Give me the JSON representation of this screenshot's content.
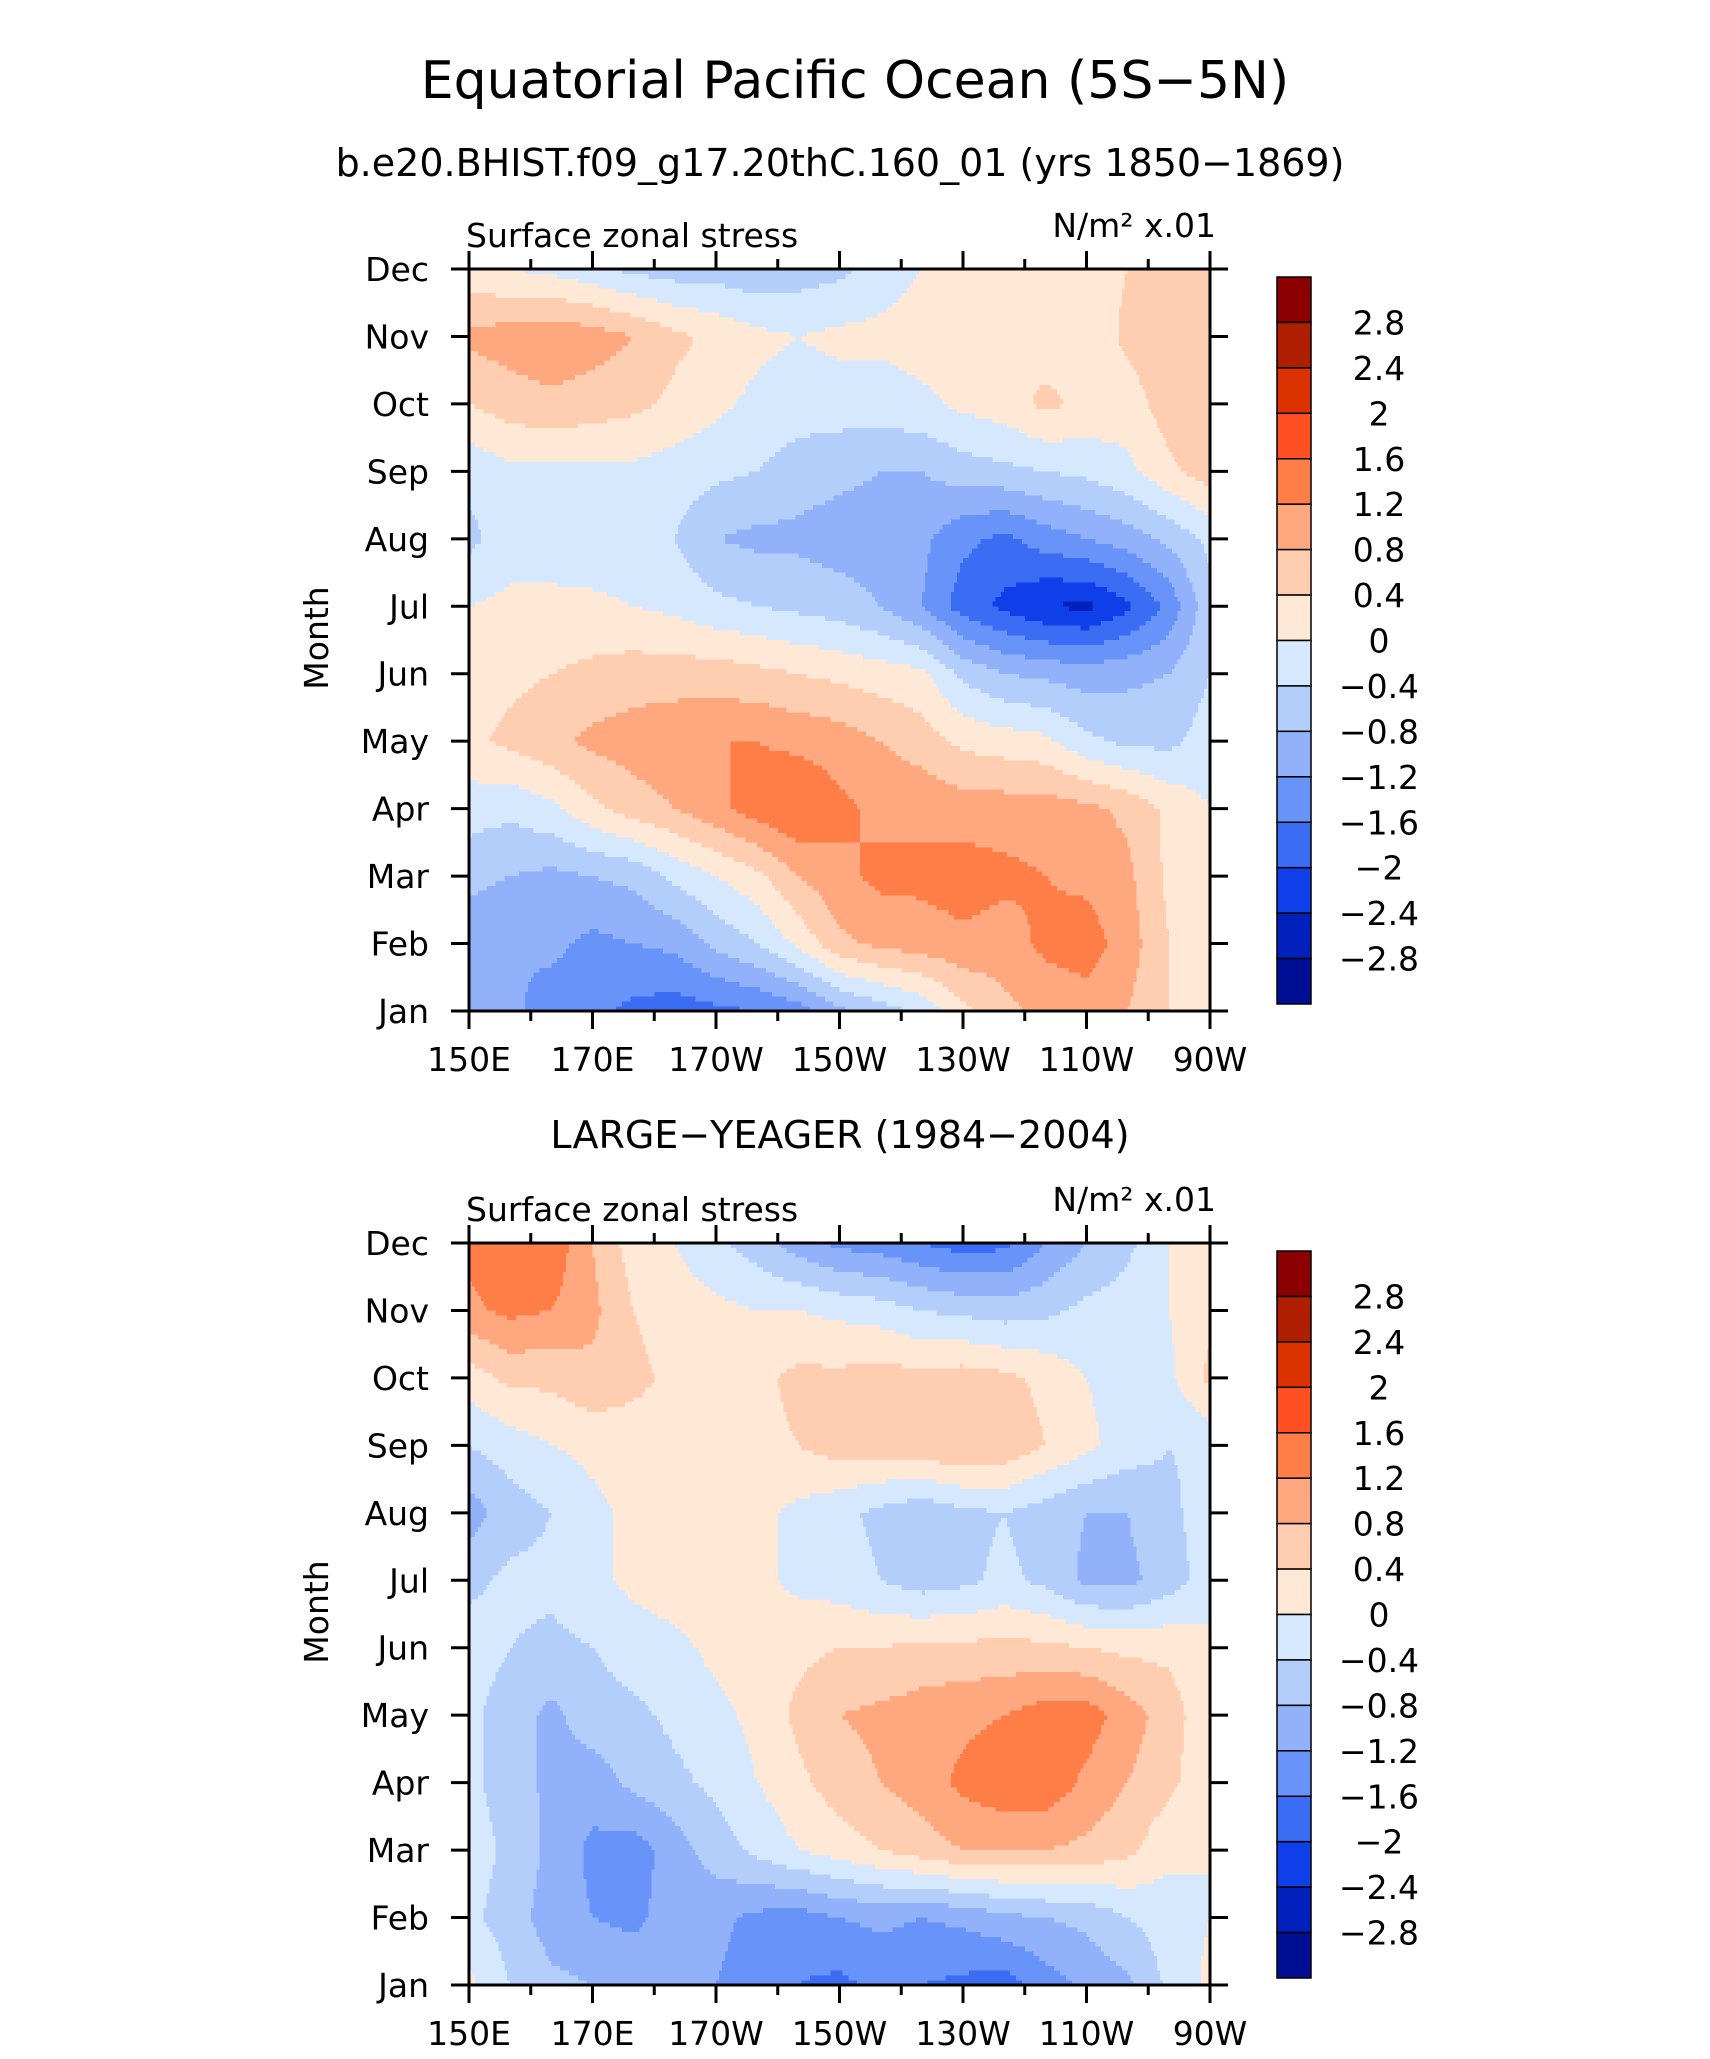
{
  "figure": {
    "title": "Equatorial Pacific Ocean (5S−5N)"
  },
  "colorbar": {
    "labels": [
      "2.8",
      "2.4",
      "2",
      "1.6",
      "1.2",
      "0.8",
      "0.4",
      "0",
      "−0.4",
      "−0.8",
      "−1.2",
      "−1.6",
      "−2",
      "−2.4",
      "−2.8"
    ],
    "colors": [
      "#8b0000",
      "#b01e00",
      "#dc3200",
      "#ff5024",
      "#ff7e48",
      "#ffa77f",
      "#ffcdb0",
      "#ffe8d6",
      "#d6e8fd",
      "#b4cefc",
      "#91b2fa",
      "#6893f8",
      "#3a6cf4",
      "#0f3fe8",
      "#0021bb",
      "#000e96"
    ]
  },
  "chart_data": [
    {
      "type": "heatmap",
      "subtitle": "b.e20.BHIST.f09_g17.20thC.160_01 (yrs 1850−1869)",
      "left_string": "Surface zonal stress",
      "right_string": "N/m² x.01",
      "xlabel": "",
      "ylabel": "Month",
      "x_ticks": [
        "150E",
        "170E",
        "170W",
        "150W",
        "130W",
        "110W",
        "90W"
      ],
      "y_ticks": [
        "Jan",
        "Feb",
        "Mar",
        "Apr",
        "May",
        "Jun",
        "Jul",
        "Aug",
        "Sep",
        "Oct",
        "Nov",
        "Dec"
      ],
      "x_range": [
        "150E",
        "90W"
      ],
      "levels": [
        -2.8,
        -2.4,
        -2,
        -1.6,
        -1.2,
        -0.8,
        -0.4,
        0,
        0.4,
        0.8,
        1.2,
        1.6,
        2,
        2.4,
        2.8
      ],
      "values": [
        [
          -1.0,
          -1.1,
          -1.4,
          -1.5,
          -1.7,
          -1.8,
          -1.7,
          -1.6,
          -1.4,
          -0.9,
          -0.6,
          -0.3,
          0.3,
          0.7,
          0.9,
          1.0,
          0.8,
          0.4,
          0.1
        ],
        [
          -1.0,
          -1.2,
          -1.1,
          -1.3,
          -1.2,
          -1.1,
          -0.7,
          -0.4,
          0.1,
          0.7,
          0.9,
          1.0,
          1.1,
          1.0,
          1.3,
          1.4,
          1.0,
          0.4,
          0.1
        ],
        [
          -0.7,
          -0.8,
          -0.9,
          -0.8,
          -0.7,
          -0.3,
          0.0,
          0.3,
          0.8,
          1.1,
          1.3,
          1.3,
          1.4,
          1.3,
          1.2,
          1.1,
          0.9,
          0.3,
          0.1
        ],
        [
          -0.2,
          -0.3,
          -0.1,
          0.3,
          0.6,
          0.8,
          1.1,
          1.4,
          1.6,
          1.3,
          1.1,
          1.1,
          1.0,
          1.0,
          1.0,
          0.9,
          0.7,
          0.3,
          0.0
        ],
        [
          0.3,
          0.5,
          0.7,
          0.9,
          1.0,
          1.1,
          1.2,
          1.2,
          1.1,
          1.0,
          0.8,
          0.6,
          0.3,
          0.2,
          0.1,
          -0.3,
          -0.5,
          -0.5,
          -0.2
        ],
        [
          0.2,
          0.3,
          0.4,
          0.5,
          0.6,
          0.6,
          0.6,
          0.5,
          0.4,
          0.3,
          0.2,
          0.1,
          -0.5,
          -0.8,
          -0.9,
          -1.0,
          -0.9,
          -0.8,
          -0.4
        ],
        [
          0.0,
          0.1,
          0.1,
          0.1,
          0.0,
          -0.1,
          -0.3,
          -0.4,
          -0.5,
          -0.6,
          -0.8,
          -1.2,
          -1.8,
          -2.1,
          -2.4,
          -2.5,
          -2.1,
          -1.5,
          -0.5
        ],
        [
          -0.5,
          -0.2,
          -0.2,
          -0.3,
          -0.3,
          -0.4,
          -0.8,
          -0.9,
          -0.9,
          -1.0,
          -1.0,
          -1.1,
          -1.5,
          -1.7,
          -1.4,
          -1.2,
          -1.0,
          -0.7,
          -0.3
        ],
        [
          -0.3,
          -0.1,
          -0.1,
          -0.1,
          -0.1,
          -0.2,
          -0.3,
          -0.4,
          -0.6,
          -0.7,
          -0.8,
          -0.8,
          -0.6,
          -0.5,
          -0.4,
          -0.3,
          -0.1,
          0.3,
          0.6
        ],
        [
          0.4,
          0.6,
          0.7,
          0.6,
          0.5,
          0.3,
          0.1,
          -0.1,
          -0.2,
          -0.2,
          -0.2,
          -0.1,
          0.1,
          0.2,
          0.5,
          0.3,
          0.2,
          0.6,
          0.7
        ],
        [
          0.9,
          1.0,
          1.1,
          1.0,
          0.8,
          0.5,
          0.3,
          0.1,
          0.0,
          0.1,
          0.1,
          0.2,
          0.1,
          0.2,
          0.2,
          0.1,
          0.5,
          0.7,
          0.8
        ],
        [
          0.1,
          0.0,
          -0.1,
          -0.3,
          -0.5,
          -0.6,
          -0.6,
          -0.7,
          -0.6,
          -0.5,
          -0.2,
          0.0,
          0.1,
          0.2,
          0.2,
          0.2,
          0.4,
          0.5,
          0.6
        ]
      ]
    },
    {
      "type": "heatmap",
      "subtitle": "LARGE−YEAGER (1984−2004)",
      "left_string": "Surface zonal stress",
      "right_string": "N/m² x.01",
      "xlabel": "",
      "ylabel": "Month",
      "x_ticks": [
        "150E",
        "170E",
        "170W",
        "150W",
        "130W",
        "110W",
        "90W"
      ],
      "y_ticks": [
        "Jan",
        "Feb",
        "Mar",
        "Apr",
        "May",
        "Jun",
        "Jul",
        "Aug",
        "Sep",
        "Oct",
        "Nov",
        "Dec"
      ],
      "x_range": [
        "150E",
        "90W"
      ],
      "levels": [
        -2.8,
        -2.4,
        -2,
        -1.6,
        -1.2,
        -0.8,
        -0.4,
        0,
        0.4,
        0.8,
        1.2,
        1.6,
        2,
        2.4,
        2.8
      ],
      "values": [
        [
          0.1,
          -0.4,
          -0.7,
          -0.8,
          -0.9,
          -1.0,
          -1.2,
          -1.4,
          -1.6,
          -1.7,
          -1.5,
          -1.6,
          -1.7,
          -1.8,
          -1.4,
          -1.1,
          -0.9,
          -0.3,
          0.1
        ],
        [
          -0.3,
          -0.6,
          -1.0,
          -1.2,
          -1.3,
          -1.0,
          -1.1,
          -1.3,
          -1.4,
          -1.2,
          -1.1,
          -1.2,
          -1.1,
          -0.9,
          -0.8,
          -0.7,
          -0.4,
          -0.2,
          0.0
        ],
        [
          -0.2,
          -0.5,
          -0.9,
          -1.3,
          -1.4,
          -1.0,
          -0.6,
          -0.3,
          0.0,
          0.2,
          0.4,
          0.6,
          0.8,
          0.8,
          0.8,
          0.7,
          0.5,
          0.1,
          0.0
        ],
        [
          -0.3,
          -0.6,
          -0.9,
          -1.0,
          -0.7,
          -0.5,
          -0.3,
          0.0,
          0.3,
          0.6,
          0.8,
          1.0,
          1.3,
          1.5,
          1.5,
          1.1,
          0.8,
          0.5,
          0.1
        ],
        [
          -0.3,
          -0.6,
          -0.9,
          -0.6,
          -0.5,
          -0.3,
          -0.1,
          0.1,
          0.5,
          0.8,
          0.9,
          1.0,
          1.1,
          1.2,
          1.4,
          1.4,
          1.0,
          0.6,
          0.1
        ],
        [
          -0.2,
          -0.4,
          -0.5,
          -0.4,
          -0.2,
          -0.1,
          0.1,
          0.2,
          0.3,
          0.4,
          0.4,
          0.5,
          0.5,
          0.5,
          0.5,
          0.4,
          0.3,
          0.3,
          0.1
        ],
        [
          -0.5,
          -0.3,
          -0.3,
          -0.1,
          0.1,
          0.2,
          0.2,
          0.1,
          -0.1,
          -0.2,
          -0.4,
          -0.6,
          -0.5,
          -0.3,
          -0.5,
          -0.9,
          -0.9,
          -0.6,
          -0.2
        ],
        [
          -1.0,
          -0.6,
          -0.4,
          -0.1,
          0.1,
          0.2,
          0.3,
          0.1,
          -0.1,
          -0.3,
          -0.5,
          -0.7,
          -0.5,
          -0.4,
          -0.6,
          -0.8,
          -0.8,
          -0.5,
          -0.2
        ],
        [
          -0.4,
          -0.2,
          0.0,
          0.1,
          0.2,
          0.3,
          0.3,
          0.3,
          0.4,
          0.6,
          0.6,
          0.7,
          0.8,
          0.7,
          0.4,
          0.1,
          -0.2,
          -0.4,
          -0.3
        ],
        [
          0.2,
          0.5,
          0.5,
          0.7,
          0.5,
          0.3,
          0.2,
          0.3,
          0.5,
          0.5,
          0.6,
          0.5,
          0.6,
          0.5,
          0.3,
          0.0,
          -0.2,
          -0.1,
          0.5
        ],
        [
          1.1,
          1.3,
          1.2,
          0.9,
          0.4,
          0.2,
          0.1,
          0.0,
          0.0,
          -0.1,
          -0.2,
          -0.4,
          -0.5,
          -0.6,
          -0.5,
          -0.3,
          -0.2,
          0.0,
          0.3
        ],
        [
          1.3,
          1.6,
          1.5,
          0.8,
          0.2,
          0.0,
          -0.3,
          -0.6,
          -1.0,
          -1.3,
          -1.4,
          -1.6,
          -1.8,
          -1.7,
          -1.2,
          -0.8,
          -0.5,
          0.0,
          0.2
        ]
      ]
    }
  ]
}
